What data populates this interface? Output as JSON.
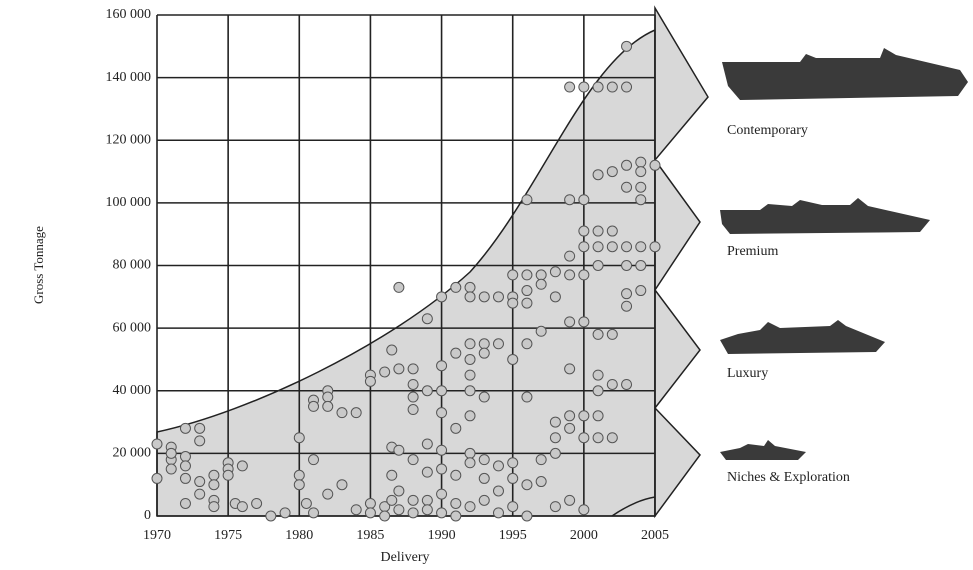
{
  "chart_data": {
    "type": "scatter",
    "x_label": "Delivery",
    "y_label": "Gross Tonnage",
    "xlim": [
      1970,
      2005
    ],
    "ylim": [
      0,
      160000
    ],
    "xticks": [
      1970,
      1975,
      1980,
      1985,
      1990,
      1995,
      2000,
      2005
    ],
    "yticks": [
      0,
      {
        "value": 20000,
        "label": "20 000"
      },
      {
        "value": 40000,
        "label": "40 000"
      },
      {
        "value": 60000,
        "label": "60 000"
      },
      {
        "value": 80000,
        "label": "80 000"
      },
      {
        "value": 100000,
        "label": "100 000"
      },
      {
        "value": 120000,
        "label": "120 000"
      },
      {
        "value": 140000,
        "label": "140 000"
      },
      {
        "value": 160000,
        "label": "160 000"
      }
    ],
    "grid": true,
    "color": "#c9c9c9",
    "annotations": [
      "Contemporary",
      "Premium",
      "Luxury",
      "Niches & Exploration"
    ],
    "x": [
      1970,
      1970,
      1971,
      1971,
      1971,
      1971,
      1972,
      1972,
      1972,
      1972,
      1972,
      1973,
      1973,
      1973,
      1973,
      1974,
      1974,
      1974,
      1974,
      1975,
      1975,
      1975,
      1975.5,
      1976,
      1976,
      1977,
      1978,
      1979,
      1980,
      1980,
      1980,
      1980.5,
      1981,
      1981,
      1981,
      1981,
      1982,
      1982,
      1982,
      1982,
      1983,
      1983,
      1984,
      1984,
      1985,
      1985,
      1985,
      1985,
      1986,
      1986,
      1986,
      1986.5,
      1986.5,
      1986.5,
      1986.5,
      1987,
      1987,
      1987,
      1987,
      1987,
      1988,
      1988,
      1988,
      1988,
      1988,
      1988,
      1988,
      1989,
      1989,
      1989,
      1989,
      1989,
      1989,
      1990,
      1990,
      1990,
      1990,
      1990,
      1990,
      1990,
      1990,
      1991,
      1991,
      1991,
      1991,
      1991,
      1991,
      1992,
      1992,
      1992,
      1992,
      1992,
      1992,
      1992,
      1992,
      1992,
      1992,
      1993,
      1993,
      1993,
      1993,
      1993,
      1993,
      1993,
      1994,
      1994,
      1994,
      1994,
      1994,
      1995,
      1995,
      1995,
      1995,
      1995,
      1995,
      1995,
      1996,
      1996,
      1996,
      1996,
      1996,
      1996,
      1996,
      1996,
      1997,
      1997,
      1997,
      1997,
      1997,
      1998,
      1998,
      1998,
      1998,
      1998,
      1998,
      1999,
      1999,
      1999,
      1999,
      1999,
      1999,
      1999,
      1999,
      1999,
      2000,
      2000,
      2000,
      2000,
      2000,
      2000,
      2000,
      2000,
      2000,
      2001,
      2001,
      2001,
      2001,
      2001,
      2001,
      2001,
      2001,
      2001,
      2001,
      2002,
      2002,
      2002,
      2002,
      2002,
      2002,
      2002,
      2003,
      2003,
      2003,
      2003,
      2003,
      2003,
      2003,
      2003,
      2003,
      2004,
      2004,
      2004,
      2004,
      2004,
      2004,
      2004,
      2005,
      2005
    ],
    "values": [
      23000,
      12000,
      22000,
      18000,
      15000,
      20000,
      28000,
      19000,
      16000,
      12000,
      4000,
      28000,
      24000,
      11000,
      7000,
      13000,
      10000,
      5000,
      3000,
      17000,
      15000,
      13000,
      4000,
      16000,
      3000,
      4000,
      0,
      1000,
      25000,
      13000,
      10000,
      4000,
      37000,
      35000,
      18000,
      1000,
      40000,
      38000,
      35000,
      7000,
      33000,
      10000,
      33000,
      2000,
      45000,
      43000,
      4000,
      1000,
      46000,
      3000,
      0,
      53000,
      22000,
      13000,
      5000,
      73000,
      47000,
      21000,
      8000,
      2000,
      47000,
      42000,
      38000,
      34000,
      18000,
      5000,
      1000,
      63000,
      40000,
      23000,
      14000,
      5000,
      2000,
      70000,
      48000,
      40000,
      33000,
      21000,
      15000,
      7000,
      1000,
      73000,
      52000,
      28000,
      13000,
      4000,
      0,
      73000,
      70000,
      55000,
      50000,
      45000,
      40000,
      32000,
      20000,
      17000,
      3000,
      70000,
      55000,
      52000,
      38000,
      18000,
      12000,
      5000,
      70000,
      55000,
      16000,
      8000,
      1000,
      77000,
      70000,
      68000,
      50000,
      17000,
      12000,
      3000,
      101000,
      77000,
      72000,
      68000,
      55000,
      38000,
      10000,
      0,
      77000,
      74000,
      59000,
      18000,
      11000,
      78000,
      70000,
      30000,
      25000,
      20000,
      3000,
      137000,
      101000,
      83000,
      77000,
      62000,
      47000,
      32000,
      28000,
      5000,
      137000,
      101000,
      91000,
      86000,
      77000,
      62000,
      32000,
      25000,
      2000,
      137000,
      109000,
      91000,
      86000,
      80000,
      58000,
      45000,
      40000,
      32000,
      25000,
      137000,
      110000,
      91000,
      86000,
      58000,
      42000,
      25000,
      150000,
      137000,
      112000,
      105000,
      86000,
      80000,
      71000,
      67000,
      42000,
      113000,
      110000,
      105000,
      101000,
      86000,
      80000,
      72000,
      112000,
      86000
    ]
  }
}
